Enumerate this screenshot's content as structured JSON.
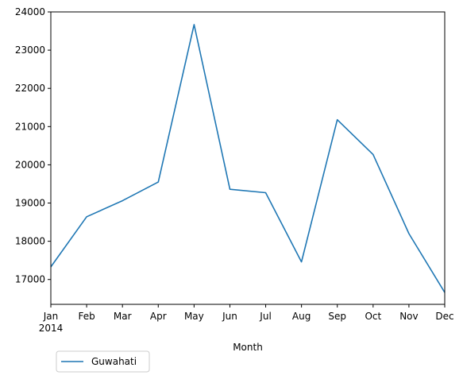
{
  "chart_data": {
    "type": "line",
    "title": "",
    "xlabel": "Month",
    "ylabel": "",
    "categories": [
      "Jan",
      "Feb",
      "Mar",
      "Apr",
      "May",
      "Jun",
      "Jul",
      "Aug",
      "Sep",
      "Oct",
      "Nov",
      "Dec"
    ],
    "year_label": "2014",
    "ylim": [
      16350,
      24000
    ],
    "yticks": [
      17000,
      18000,
      19000,
      20000,
      21000,
      22000,
      23000,
      24000
    ],
    "grid": false,
    "legend_position": "below-left",
    "series": [
      {
        "name": "Guwahati",
        "color": "#1f77b4",
        "values": [
          17330,
          18640,
          19060,
          19550,
          23670,
          19360,
          19270,
          17460,
          21180,
          20270,
          18200,
          16660
        ]
      }
    ]
  }
}
